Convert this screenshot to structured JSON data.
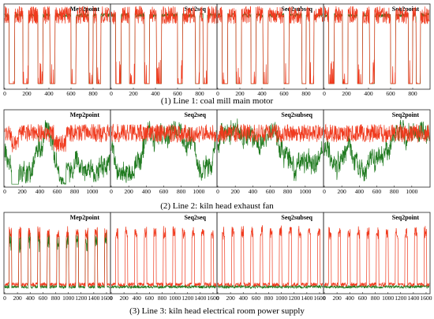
{
  "figure": {
    "colors": {
      "series_1": "#f03a1e",
      "series_2": "#1f7a1f",
      "frame": "#222222"
    }
  },
  "chart_data": [
    {
      "type": "line",
      "caption": "(1) Line 1: coal mill main motor",
      "panel_titles": [
        "Mep2point",
        "Seq2seq",
        "Seq2subseq",
        "Seq2point"
      ],
      "xlim": [
        0,
        950
      ],
      "x_ticks": [
        0,
        200,
        400,
        600,
        800
      ],
      "ylim": [
        0,
        1
      ],
      "grid": false,
      "signal": "square",
      "off_intervals": [
        [
          40,
          90
        ],
        [
          165,
          215
        ],
        [
          300,
          345
        ],
        [
          410,
          455
        ],
        [
          600,
          645
        ],
        [
          760,
          800
        ],
        [
          830,
          870
        ]
      ],
      "on_level": 0.9,
      "off_level": 0.05
    },
    {
      "type": "line",
      "caption": "(2) Line 2: kiln head exhaust fan",
      "panel_titles": [
        "Mep2point",
        "Seq2seq",
        "Seq2subseq",
        "Seq2point"
      ],
      "xlim": [
        0,
        1200
      ],
      "x_ticks": [
        0,
        200,
        400,
        600,
        800,
        1000
      ],
      "ylim": [
        0,
        1
      ],
      "grid": false,
      "signal": "noisy"
    },
    {
      "type": "line",
      "caption": "(3) Line 3: kiln head electrical room power supply",
      "panel_titles": [
        "Mep2point",
        "Seq2seq",
        "Seq2subseq",
        "Seq2point"
      ],
      "xlim": [
        0,
        1650
      ],
      "x_ticks": [
        0,
        200,
        400,
        600,
        800,
        1000,
        1200,
        1400,
        1600
      ],
      "x_tick_labels": [
        "0",
        "200",
        "400",
        "600",
        "800",
        "1000",
        "1200",
        "1400",
        "1600"
      ],
      "ylim": [
        0,
        1
      ],
      "grid": false,
      "signal": "pulse",
      "pulse_count": 11,
      "base_level": 0.1,
      "pulse_level": 0.85
    }
  ]
}
